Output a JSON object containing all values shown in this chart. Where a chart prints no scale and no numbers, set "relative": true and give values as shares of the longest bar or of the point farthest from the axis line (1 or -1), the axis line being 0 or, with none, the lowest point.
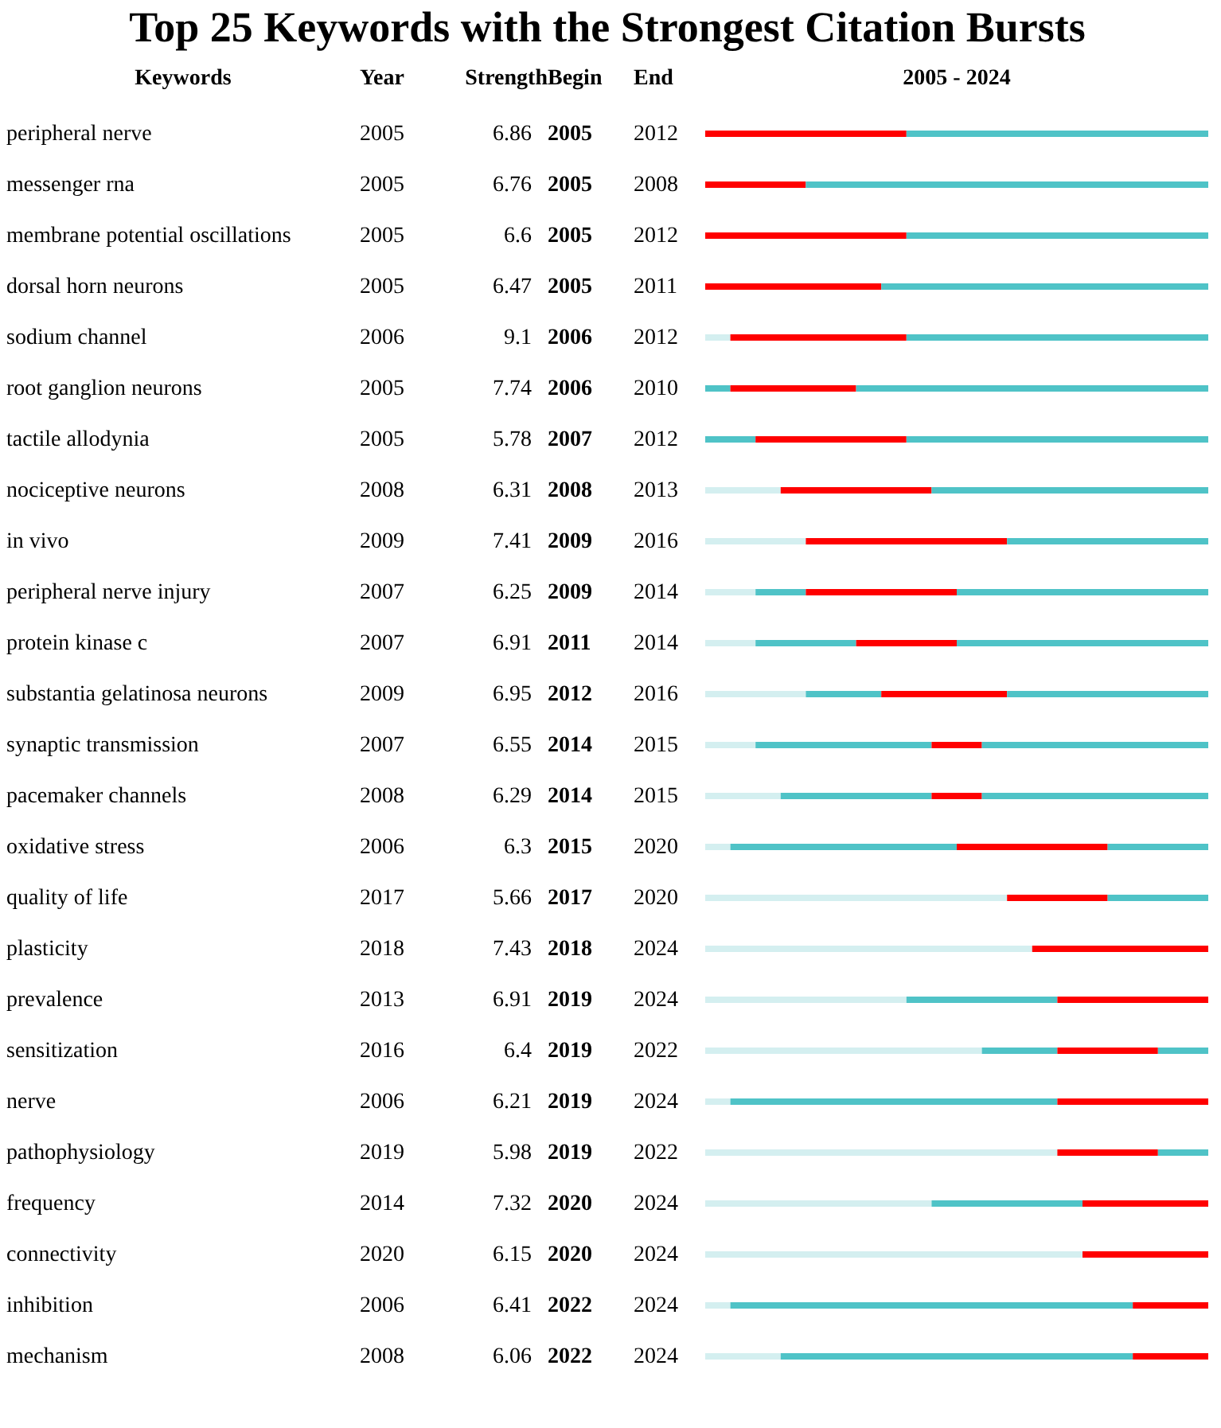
{
  "chart_data": {
    "type": "bar",
    "title": "Top 25 Keywords with the Strongest Citation Bursts",
    "orientation": "horizontal",
    "stacked": true,
    "relative": true,
    "ylabel": "Keywords",
    "xlabel": "2005 - 2024",
    "categories": [
      "peripheral nerve",
      "messenger rna",
      "membrane potential oscillations",
      "dorsal horn neurons",
      "sodium channel",
      "root ganglion neurons",
      "tactile allodynia",
      "nociceptive neurons",
      "in vivo",
      "peripheral nerve injury",
      "protein kinase c",
      "substantia gelatinosa neurons",
      "synaptic transmission",
      "pacemaker channels",
      "oxidative stress",
      "quality of life",
      "plasticity",
      "prevalence",
      "sensitization",
      "nerve",
      "pathophysiology",
      "frequency",
      "connectivity",
      "inhibition",
      "mechanism"
    ],
    "series": [
      {
        "color": "#d4eff0",
        "values": [
          0,
          0,
          0,
          0,
          0.05,
          0,
          0,
          0.15,
          0.2,
          0.1,
          0.1,
          0.2,
          0.1,
          0.15,
          0.05,
          0.6,
          0.65,
          0.4,
          0.55,
          0.05,
          0.7,
          0.45,
          0.75,
          0.05,
          0.15
        ]
      },
      {
        "color": "#4fc3c7",
        "values": [
          0,
          0,
          0,
          0,
          0,
          0.05,
          0.1,
          0,
          0,
          0.1,
          0.2,
          0.15,
          0.35,
          0.3,
          0.45,
          0,
          0,
          0.3,
          0.15,
          0.65,
          0,
          0.3,
          0,
          0.8,
          0.7
        ]
      },
      {
        "color": "#ff0000",
        "values": [
          0.4,
          0.2,
          0.4,
          0.35,
          0.35,
          0.25,
          0.3,
          0.3,
          0.4,
          0.3,
          0.2,
          0.25,
          0.1,
          0.1,
          0.3,
          0.2,
          0.35,
          0.3,
          0.2,
          0.3,
          0.2,
          0.25,
          0.25,
          0.15,
          0.15
        ]
      },
      {
        "color": "#4fc3c7",
        "values": [
          0.6,
          0.8,
          0.6,
          0.65,
          0.6,
          0.7,
          0.6,
          0.55,
          0.4,
          0.5,
          0.5,
          0.4,
          0.45,
          0.45,
          0.2,
          0.2,
          0,
          0,
          0.1,
          0,
          0.1,
          0,
          0,
          0,
          0
        ]
      }
    ],
    "annotations": [
      "Year",
      "Strength",
      "Begin",
      "End",
      "2005",
      "6.86",
      "2005",
      "2012",
      "2005",
      "6.76",
      "2005",
      "2008",
      "2005",
      "6.6",
      "2005",
      "2012",
      "2005",
      "6.47",
      "2005",
      "2011",
      "2006",
      "9.1",
      "2006",
      "2012",
      "2005",
      "7.74",
      "2006",
      "2010",
      "2005",
      "5.78",
      "2007",
      "2012",
      "2008",
      "6.31",
      "2008",
      "2013",
      "2009",
      "7.41",
      "2009",
      "2016",
      "2007",
      "6.25",
      "2009",
      "2014",
      "2007",
      "6.91",
      "2011",
      "2014",
      "2009",
      "6.95",
      "2012",
      "2016",
      "2007",
      "6.55",
      "2014",
      "2015",
      "2008",
      "6.29",
      "2014",
      "2015",
      "2006",
      "6.3",
      "2015",
      "2020",
      "2017",
      "5.66",
      "2017",
      "2020",
      "2018",
      "7.43",
      "2018",
      "2024",
      "2013",
      "6.91",
      "2019",
      "2024",
      "2016",
      "6.4",
      "2019",
      "2022",
      "2006",
      "6.21",
      "2019",
      "2024",
      "2019",
      "5.98",
      "2019",
      "2022",
      "2014",
      "7.32",
      "2020",
      "2024",
      "2020",
      "6.15",
      "2020",
      "2024",
      "2006",
      "6.41",
      "2022",
      "2024",
      "2008",
      "6.06",
      "2022",
      "2024"
    ]
  }
}
